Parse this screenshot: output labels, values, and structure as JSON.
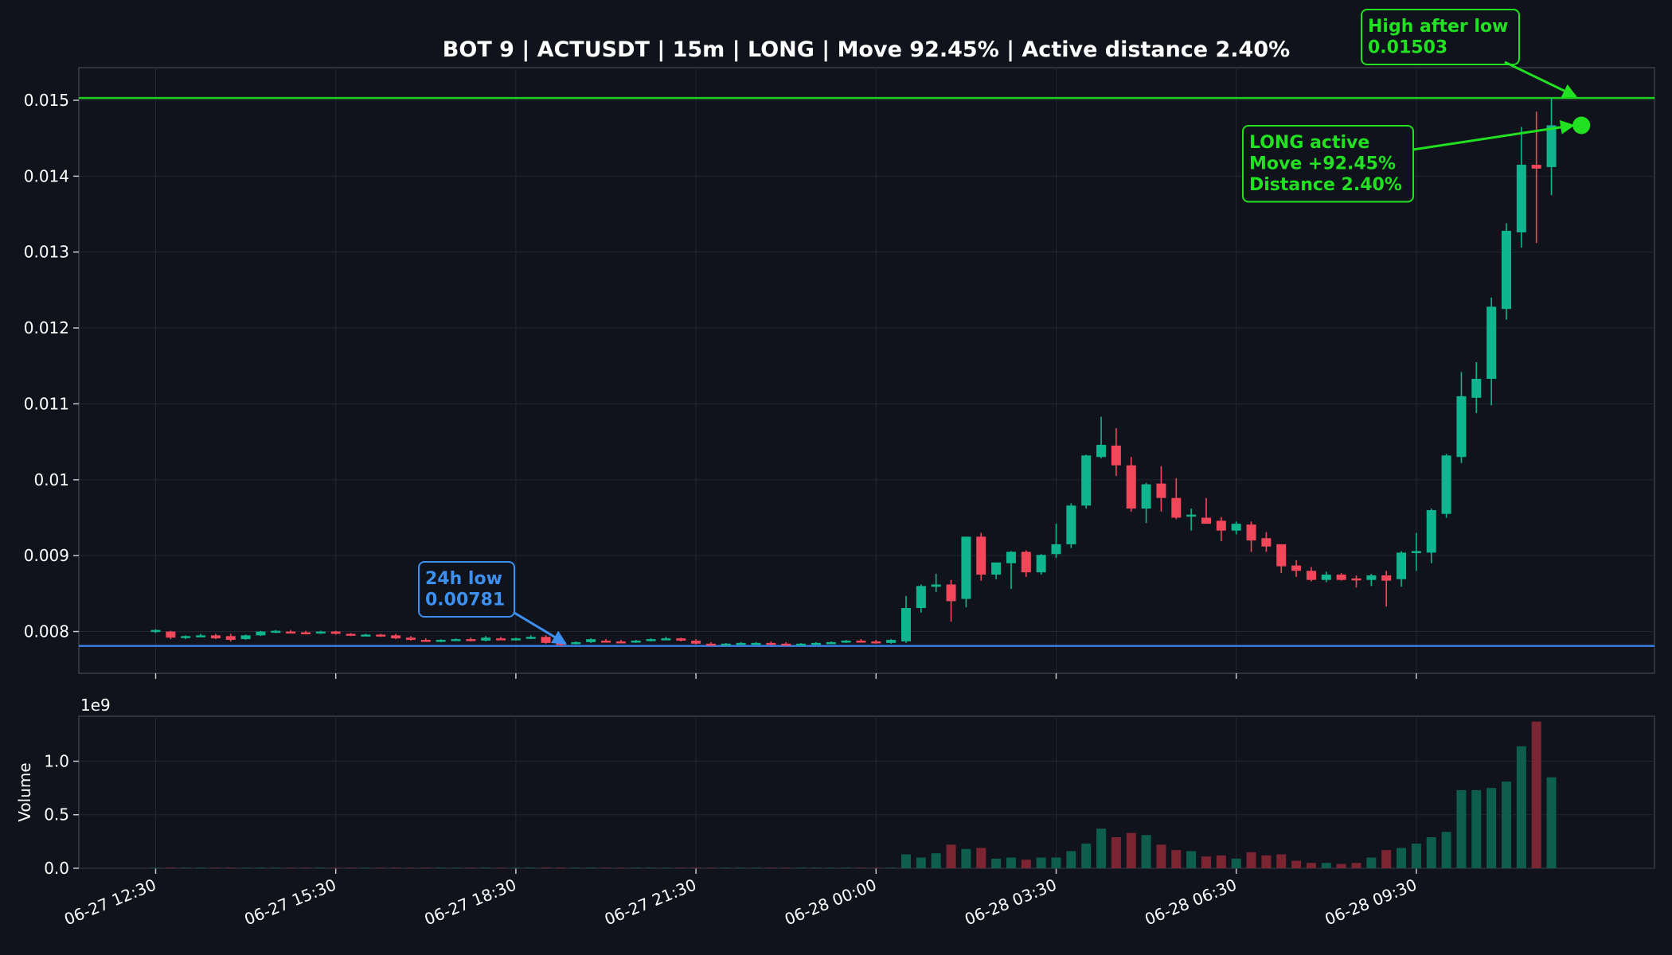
{
  "chart_data": {
    "type": "candlestick",
    "title": "BOT 9 | ACTUSDT | 15m | LONG | Move 92.45% | Active distance 2.40%",
    "price_axis": {
      "ylim": [
        0.00745,
        0.01543
      ],
      "ticks": [
        0.008,
        0.009,
        0.01,
        0.011,
        0.012,
        0.013,
        0.014,
        0.015
      ],
      "tick_labels": [
        "0.008",
        "0.009",
        "0.01",
        "0.011",
        "0.012",
        "0.013",
        "0.014",
        "0.015"
      ]
    },
    "volume_axis": {
      "ylabel": "Volume",
      "multiplier_label": "1e9",
      "ylim": [
        0,
        1.42
      ],
      "ticks": [
        0,
        0.5,
        1.0
      ],
      "tick_labels": [
        "0.0",
        "0.5",
        "1.0"
      ]
    },
    "x_axis": {
      "first_bar_time": "06-27 12:30",
      "bar_interval": "15m",
      "tick_bars": [
        0,
        12,
        24,
        36,
        48,
        60,
        72,
        84
      ],
      "tick_labels": [
        "06-27 12:30",
        "06-27 15:30",
        "06-27 18:30",
        "06-27 21:30",
        "06-28 00:00",
        "06-28 03:30",
        "06-28 06:30",
        "06-28 09:30"
      ]
    },
    "grid": true,
    "colors": {
      "background": "#10131b",
      "up": "#0fb58f",
      "down": "#f2465a",
      "volume_up": "#0d5e4d",
      "volume_down": "#7b2533",
      "low_line": "#3a7de0",
      "high_line": "#1fd01f",
      "annotation_green": "#22e022",
      "annotation_blue": "#3d8ff0"
    },
    "levels": {
      "low": 0.00781,
      "high": 0.01503
    },
    "annotations": {
      "low_box": {
        "line1": "24h low",
        "line2": "0.00781",
        "bar": 27,
        "price": 0.00781
      },
      "high_box": {
        "line1": "High after low",
        "line2": "0.01503",
        "bar": 95,
        "price": 0.01503
      },
      "active_box": {
        "line1": "LONG active",
        "line2": "Move +92.45%",
        "line3": "Distance 2.40%",
        "bar": 95,
        "price": 0.01467
      }
    },
    "ohlc": [
      [
        0.008,
        0.00803,
        0.00798,
        0.00802
      ],
      [
        0.008,
        0.00801,
        0.0079,
        0.00792
      ],
      [
        0.00792,
        0.00795,
        0.0079,
        0.00794
      ],
      [
        0.00794,
        0.00797,
        0.00793,
        0.00795
      ],
      [
        0.00795,
        0.00797,
        0.0079,
        0.00791
      ],
      [
        0.00794,
        0.00797,
        0.00787,
        0.00789
      ],
      [
        0.0079,
        0.00796,
        0.00789,
        0.00795
      ],
      [
        0.00795,
        0.00801,
        0.00794,
        0.008
      ],
      [
        0.008,
        0.00802,
        0.00798,
        0.00801
      ],
      [
        0.008,
        0.00802,
        0.00798,
        0.00799
      ],
      [
        0.00799,
        0.00801,
        0.00797,
        0.00798
      ],
      [
        0.00798,
        0.00801,
        0.00797,
        0.008
      ],
      [
        0.008,
        0.00801,
        0.00796,
        0.00797
      ],
      [
        0.00797,
        0.00798,
        0.00794,
        0.00795
      ],
      [
        0.00795,
        0.00797,
        0.00794,
        0.00796
      ],
      [
        0.00796,
        0.00797,
        0.00793,
        0.00794
      ],
      [
        0.00795,
        0.00797,
        0.0079,
        0.00791
      ],
      [
        0.00792,
        0.00794,
        0.00788,
        0.00789
      ],
      [
        0.00789,
        0.00791,
        0.00787,
        0.00788
      ],
      [
        0.00788,
        0.0079,
        0.00786,
        0.00789
      ],
      [
        0.00789,
        0.00791,
        0.00788,
        0.0079
      ],
      [
        0.0079,
        0.00792,
        0.00787,
        0.00788
      ],
      [
        0.00788,
        0.00794,
        0.00787,
        0.00792
      ],
      [
        0.00791,
        0.00793,
        0.00789,
        0.0079
      ],
      [
        0.0079,
        0.00792,
        0.00788,
        0.00791
      ],
      [
        0.00791,
        0.00795,
        0.0079,
        0.00793
      ],
      [
        0.00793,
        0.00795,
        0.00784,
        0.00785
      ],
      [
        0.00785,
        0.00788,
        0.00781,
        0.00784
      ],
      [
        0.00784,
        0.00787,
        0.00783,
        0.00786
      ],
      [
        0.00786,
        0.00791,
        0.00785,
        0.0079
      ],
      [
        0.00788,
        0.0079,
        0.00786,
        0.00787
      ],
      [
        0.00787,
        0.00789,
        0.00785,
        0.00786
      ],
      [
        0.00786,
        0.00789,
        0.00785,
        0.00788
      ],
      [
        0.00788,
        0.00791,
        0.00787,
        0.0079
      ],
      [
        0.0079,
        0.00793,
        0.00789,
        0.00791
      ],
      [
        0.00791,
        0.00792,
        0.00787,
        0.00788
      ],
      [
        0.00788,
        0.0079,
        0.00783,
        0.00784
      ],
      [
        0.00784,
        0.00786,
        0.00782,
        0.00783
      ],
      [
        0.00783,
        0.00785,
        0.00782,
        0.00784
      ],
      [
        0.00784,
        0.00786,
        0.00783,
        0.00785
      ],
      [
        0.00785,
        0.00786,
        0.00784,
        0.00785
      ],
      [
        0.00785,
        0.00787,
        0.00783,
        0.00784
      ],
      [
        0.00784,
        0.00786,
        0.00782,
        0.00783
      ],
      [
        0.00783,
        0.00785,
        0.00782,
        0.00784
      ],
      [
        0.00784,
        0.00786,
        0.00783,
        0.00785
      ],
      [
        0.00785,
        0.00787,
        0.00784,
        0.00786
      ],
      [
        0.00786,
        0.00789,
        0.00785,
        0.00788
      ],
      [
        0.00788,
        0.0079,
        0.00786,
        0.00787
      ],
      [
        0.00787,
        0.00789,
        0.00784,
        0.00785
      ],
      [
        0.00785,
        0.0079,
        0.00784,
        0.00789
      ],
      [
        0.00787,
        0.00847,
        0.00785,
        0.00831
      ],
      [
        0.00831,
        0.00862,
        0.00825,
        0.0086
      ],
      [
        0.00859,
        0.00876,
        0.00852,
        0.00862
      ],
      [
        0.00862,
        0.00868,
        0.00813,
        0.0084
      ],
      [
        0.00843,
        0.00925,
        0.00832,
        0.00925
      ],
      [
        0.00925,
        0.0093,
        0.00867,
        0.00875
      ],
      [
        0.00875,
        0.0089,
        0.00869,
        0.00891
      ],
      [
        0.0089,
        0.00906,
        0.00856,
        0.00905
      ],
      [
        0.00905,
        0.00907,
        0.00872,
        0.00878
      ],
      [
        0.00878,
        0.00902,
        0.00875,
        0.00901
      ],
      [
        0.00902,
        0.00942,
        0.00897,
        0.00915
      ],
      [
        0.00915,
        0.00969,
        0.0091,
        0.00966
      ],
      [
        0.00966,
        0.01033,
        0.00962,
        0.01032
      ],
      [
        0.0103,
        0.01083,
        0.01028,
        0.01046
      ],
      [
        0.01045,
        0.01068,
        0.01005,
        0.01019
      ],
      [
        0.01019,
        0.0103,
        0.00958,
        0.00962
      ],
      [
        0.00962,
        0.00996,
        0.00943,
        0.00994
      ],
      [
        0.00995,
        0.01018,
        0.00958,
        0.00976
      ],
      [
        0.00976,
        0.01002,
        0.00948,
        0.0095
      ],
      [
        0.00953,
        0.00962,
        0.00933,
        0.00954
      ],
      [
        0.0095,
        0.00976,
        0.00943,
        0.00942
      ],
      [
        0.00946,
        0.00951,
        0.00919,
        0.00933
      ],
      [
        0.00933,
        0.00945,
        0.00928,
        0.00942
      ],
      [
        0.00941,
        0.00945,
        0.00905,
        0.0092
      ],
      [
        0.00923,
        0.00931,
        0.00905,
        0.00912
      ],
      [
        0.00915,
        0.00914,
        0.00877,
        0.00886
      ],
      [
        0.00887,
        0.00894,
        0.00872,
        0.0088
      ],
      [
        0.0088,
        0.00885,
        0.00866,
        0.00868
      ],
      [
        0.00868,
        0.00879,
        0.00865,
        0.00875
      ],
      [
        0.00875,
        0.00877,
        0.00867,
        0.00868
      ],
      [
        0.0087,
        0.00874,
        0.00858,
        0.00869
      ],
      [
        0.00868,
        0.00876,
        0.0086,
        0.00874
      ],
      [
        0.00874,
        0.0088,
        0.00833,
        0.00867
      ],
      [
        0.00869,
        0.00906,
        0.00859,
        0.00904
      ],
      [
        0.00905,
        0.0093,
        0.0088,
        0.00906
      ],
      [
        0.00904,
        0.00962,
        0.0089,
        0.0096
      ],
      [
        0.00955,
        0.01034,
        0.0095,
        0.01032
      ],
      [
        0.0103,
        0.01142,
        0.01022,
        0.0111
      ],
      [
        0.01108,
        0.01155,
        0.01088,
        0.01133
      ],
      [
        0.01133,
        0.0124,
        0.01098,
        0.01228
      ],
      [
        0.01225,
        0.01338,
        0.01211,
        0.01328
      ],
      [
        0.01326,
        0.01465,
        0.01306,
        0.01415
      ],
      [
        0.01415,
        0.01485,
        0.01312,
        0.0141
      ],
      [
        0.01412,
        0.01503,
        0.01375,
        0.01467
      ]
    ],
    "volume": [
      0.005,
      0.006,
      0.004,
      0.005,
      0.004,
      0.005,
      0.004,
      0.005,
      0.004,
      0.004,
      0.004,
      0.005,
      0.004,
      0.004,
      0.004,
      0.004,
      0.005,
      0.004,
      0.004,
      0.004,
      0.004,
      0.004,
      0.005,
      0.004,
      0.004,
      0.005,
      0.006,
      0.006,
      0.005,
      0.005,
      0.004,
      0.004,
      0.004,
      0.004,
      0.004,
      0.004,
      0.005,
      0.004,
      0.004,
      0.004,
      0.004,
      0.004,
      0.004,
      0.004,
      0.004,
      0.004,
      0.004,
      0.004,
      0.004,
      0.004,
      0.13,
      0.1,
      0.14,
      0.22,
      0.18,
      0.19,
      0.09,
      0.1,
      0.08,
      0.1,
      0.1,
      0.16,
      0.23,
      0.37,
      0.29,
      0.33,
      0.31,
      0.22,
      0.17,
      0.16,
      0.11,
      0.12,
      0.09,
      0.15,
      0.12,
      0.13,
      0.07,
      0.05,
      0.05,
      0.04,
      0.05,
      0.1,
      0.17,
      0.19,
      0.23,
      0.29,
      0.34,
      0.73,
      0.73,
      0.75,
      0.81,
      1.14,
      1.37,
      0.85
    ]
  }
}
